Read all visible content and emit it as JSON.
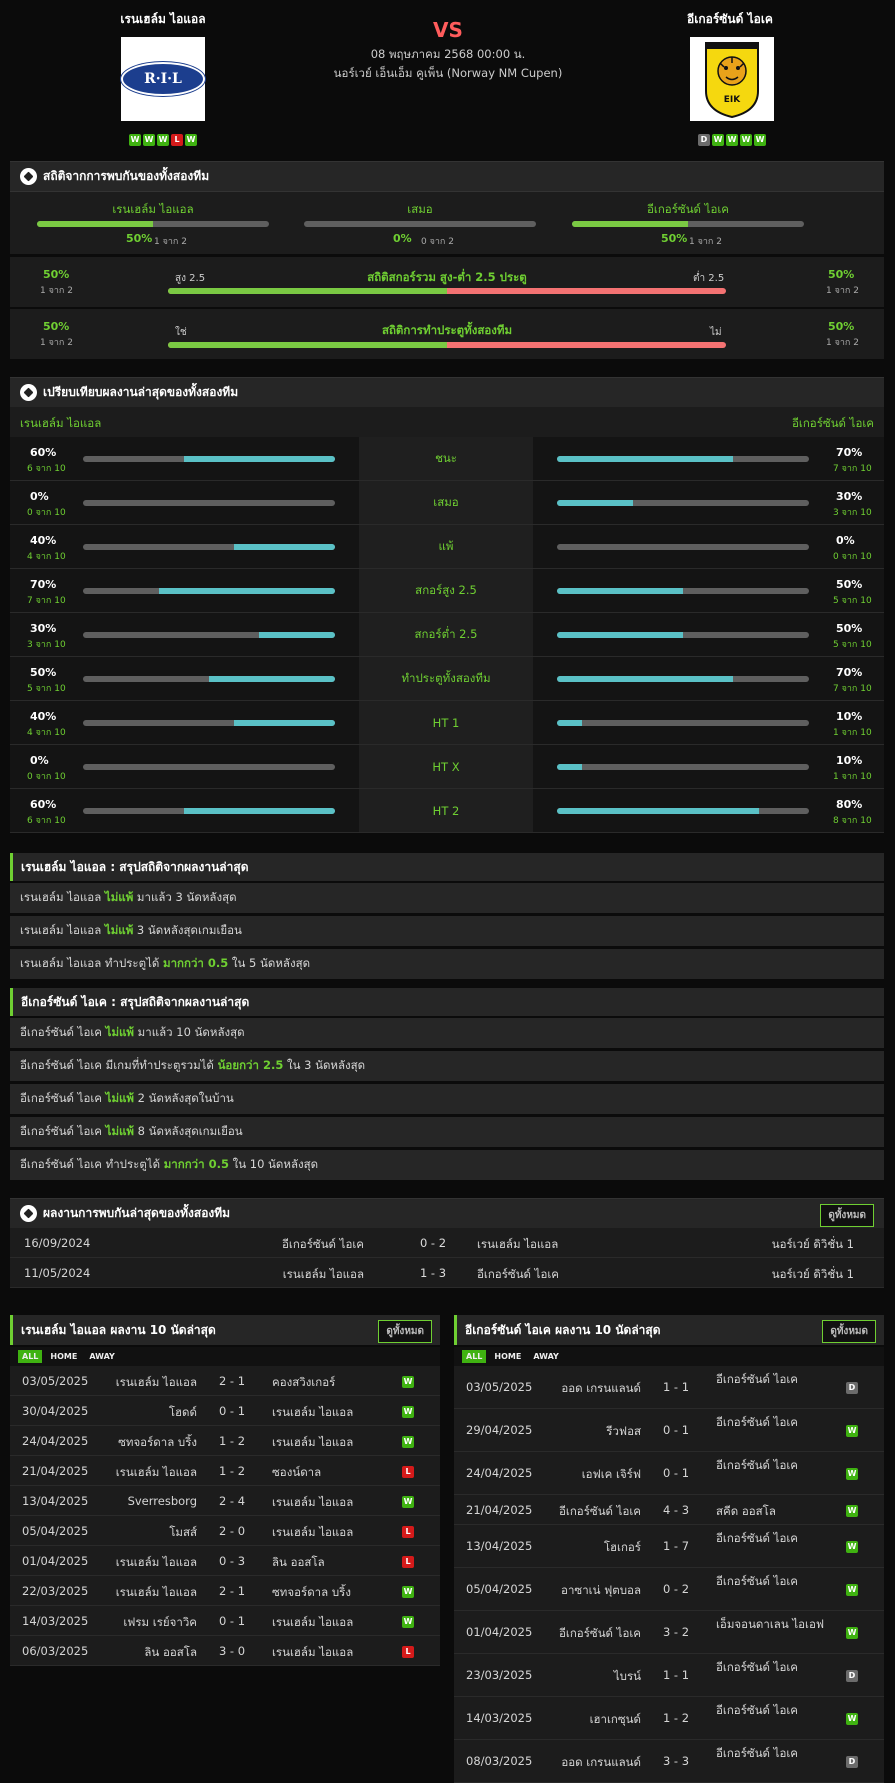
{
  "header": {
    "home_name": "เรนเฮล์ม ไอแอล",
    "away_name": "อีเกอร์ซันด์ ไอเค",
    "vs": "VS",
    "datetime": "08 พฤษภาคม 2568 00:00 น.",
    "competition": "นอร์เวย์ เอ็นเอ็ม คูเพ็น (Norway NM Cupen)",
    "home_logo_text": "R·I·L",
    "away_logo_text": "EIK",
    "home_form": [
      "W",
      "W",
      "W",
      "L",
      "W"
    ],
    "away_form": [
      "D",
      "W",
      "W",
      "W",
      "W"
    ]
  },
  "h2h_stats": {
    "title": "สถิติจากการพบกันของทั้งสองทีม",
    "cols": [
      {
        "label": "เรนเฮล์ม ไอแอล",
        "pct": "50%",
        "sub": "1 จาก 2",
        "value": 0.5
      },
      {
        "label": "เสมอ",
        "pct": "0%",
        "sub": "0 จาก 2",
        "value": 0
      },
      {
        "label": "อีเกอร์ซันด์ ไอเค",
        "pct": "50%",
        "sub": "1 จาก 2",
        "value": 0.5
      }
    ],
    "over_under": {
      "title": "สถิติสกอร์รวม สูง-ต่ำ 2.5 ประตู",
      "left_label": "สูง 2.5",
      "right_label": "ต่ำ 2.5",
      "left_pct": "50%",
      "left_sub": "1 จาก 2",
      "right_pct": "50%",
      "right_sub": "1 จาก 2",
      "value": 0.5
    },
    "btts": {
      "title": "สถิติการทำประตูทั้งสองทีม",
      "left_label": "ใช่",
      "right_label": "ไม่",
      "left_pct": "50%",
      "left_sub": "1 จาก 2",
      "right_pct": "50%",
      "right_sub": "1 จาก 2",
      "value": 0.5
    }
  },
  "compare": {
    "title": "เปรียบเทียบผลงานล่าสุดของทั้งสองทีม",
    "home": "เรนเฮล์ม ไอแอล",
    "away": "อีเกอร์ซันด์ ไอเค",
    "rows": [
      {
        "label": "ชนะ",
        "l_pct": "60%",
        "l_sub": "6 จาก 10",
        "l_val": 0.6,
        "r_pct": "70%",
        "r_sub": "7 จาก 10",
        "r_val": 0.7
      },
      {
        "label": "เสมอ",
        "l_pct": "0%",
        "l_sub": "0 จาก 10",
        "l_val": 0,
        "r_pct": "30%",
        "r_sub": "3 จาก 10",
        "r_val": 0.3
      },
      {
        "label": "แพ้",
        "l_pct": "40%",
        "l_sub": "4 จาก 10",
        "l_val": 0.4,
        "r_pct": "0%",
        "r_sub": "0 จาก 10",
        "r_val": 0
      },
      {
        "label": "สกอร์สูง 2.5",
        "l_pct": "70%",
        "l_sub": "7 จาก 10",
        "l_val": 0.7,
        "r_pct": "50%",
        "r_sub": "5 จาก 10",
        "r_val": 0.5
      },
      {
        "label": "สกอร์ต่ำ 2.5",
        "l_pct": "30%",
        "l_sub": "3 จาก 10",
        "l_val": 0.3,
        "r_pct": "50%",
        "r_sub": "5 จาก 10",
        "r_val": 0.5
      },
      {
        "label": "ทำประตูทั้งสองทีม",
        "l_pct": "50%",
        "l_sub": "5 จาก 10",
        "l_val": 0.5,
        "r_pct": "70%",
        "r_sub": "7 จาก 10",
        "r_val": 0.7
      },
      {
        "label": "HT 1",
        "l_pct": "40%",
        "l_sub": "4 จาก 10",
        "l_val": 0.4,
        "r_pct": "10%",
        "r_sub": "1 จาก 10",
        "r_val": 0.1
      },
      {
        "label": "HT X",
        "l_pct": "0%",
        "l_sub": "0 จาก 10",
        "l_val": 0,
        "r_pct": "10%",
        "r_sub": "1 จาก 10",
        "r_val": 0.1
      },
      {
        "label": "HT 2",
        "l_pct": "60%",
        "l_sub": "6 จาก 10",
        "l_val": 0.6,
        "r_pct": "80%",
        "r_sub": "8 จาก 10",
        "r_val": 0.8
      }
    ]
  },
  "home_summary": {
    "title": "เรนเฮล์ม ไอแอล : สรุปสถิติจากผลงานล่าสุด",
    "rows": [
      {
        "pre": "เรนเฮล์ม ไอแอล ",
        "hl": "ไม่แพ้",
        "post": " มาแล้ว 3 นัดหลังสุด"
      },
      {
        "pre": "เรนเฮล์ม ไอแอล ",
        "hl": "ไม่แพ้",
        "post": " 3 นัดหลังสุดเกมเยือน"
      },
      {
        "pre": "เรนเฮล์ม ไอแอล ทำประตูได้ ",
        "hl": "มากกว่า 0.5",
        "post": " ใน 5 นัดหลังสุด"
      }
    ]
  },
  "away_summary": {
    "title": "อีเกอร์ซันด์ ไอเค : สรุปสถิติจากผลงานล่าสุด",
    "rows": [
      {
        "pre": "อีเกอร์ซันด์ ไอเค ",
        "hl": "ไม่แพ้",
        "post": " มาแล้ว 10 นัดหลังสุด"
      },
      {
        "pre": "อีเกอร์ซันด์ ไอเค มีเกมที่ทำประตูรวมได้ ",
        "hl": "น้อยกว่า 2.5",
        "post": " ใน 3 นัดหลังสุด"
      },
      {
        "pre": "อีเกอร์ซันด์ ไอเค ",
        "hl": "ไม่แพ้",
        "post": " 2 นัดหลังสุดในบ้าน"
      },
      {
        "pre": "อีเกอร์ซันด์ ไอเค ",
        "hl": "ไม่แพ้",
        "post": " 8 นัดหลังสุดเกมเยือน"
      },
      {
        "pre": "อีเกอร์ซันด์ ไอเค ทำประตูได้ ",
        "hl": "มากกว่า 0.5",
        "post": " ใน 10 นัดหลังสุด"
      }
    ]
  },
  "h2h_results": {
    "title": "ผลงานการพบกันล่าสุดของทั้งสองทีม",
    "view_all": "ดูทั้งหมด",
    "rows": [
      {
        "date": "16/09/2024",
        "home": "อีเกอร์ซันด์ ไอเค",
        "score": "0 - 2",
        "away": "เรนเฮล์ม ไอแอล",
        "league": "นอร์เวย์ ดิวิชั่น 1"
      },
      {
        "date": "11/05/2024",
        "home": "เรนเฮล์ม ไอแอล",
        "score": "1 - 3",
        "away": "อีเกอร์ซันด์ ไอเค",
        "league": "นอร์เวย์ ดิวิชั่น 1"
      }
    ]
  },
  "tabs": {
    "all": "ALL",
    "home": "HOME",
    "away": "AWAY"
  },
  "home_last10": {
    "title": "เรนเฮล์ม ไอแอล ผลงาน 10 นัดล่าสุด",
    "view_all": "ดูทั้งหมด",
    "rows": [
      {
        "date": "03/05/2025",
        "home": "เรนเฮล์ม ไอแอล",
        "score": "2 - 1",
        "away": "คองสวิงเกอร์",
        "res": "W"
      },
      {
        "date": "30/04/2025",
        "home": "โฮดด์",
        "score": "0 - 1",
        "away": "เรนเฮล์ม ไอแอล",
        "res": "W"
      },
      {
        "date": "24/04/2025",
        "home": "ซทจอร์ดาล บริ้ง",
        "score": "1 - 2",
        "away": "เรนเฮล์ม ไอแอล",
        "res": "W"
      },
      {
        "date": "21/04/2025",
        "home": "เรนเฮล์ม ไอแอล",
        "score": "1 - 2",
        "away": "ซองน์ดาล",
        "res": "L"
      },
      {
        "date": "13/04/2025",
        "home": "Sverresborg",
        "score": "2 - 4",
        "away": "เรนเฮล์ม ไอแอล",
        "res": "W"
      },
      {
        "date": "05/04/2025",
        "home": "โมสส์",
        "score": "2 - 0",
        "away": "เรนเฮล์ม ไอแอล",
        "res": "L"
      },
      {
        "date": "01/04/2025",
        "home": "เรนเฮล์ม ไอแอล",
        "score": "0 - 3",
        "away": "ลิน ออสโล",
        "res": "L"
      },
      {
        "date": "22/03/2025",
        "home": "เรนเฮล์ม ไอแอล",
        "score": "2 - 1",
        "away": "ซทจอร์ดาล บริ้ง",
        "res": "W"
      },
      {
        "date": "14/03/2025",
        "home": "เฟรม เรย์จาวิค",
        "score": "0 - 1",
        "away": "เรนเฮล์ม ไอแอล",
        "res": "W"
      },
      {
        "date": "06/03/2025",
        "home": "ลิน ออสโล",
        "score": "3 - 0",
        "away": "เรนเฮล์ม ไอแอล",
        "res": "L"
      }
    ]
  },
  "away_last10": {
    "title": "อีเกอร์ซันด์ ไอเค ผลงาน 10 นัดล่าสุด",
    "view_all": "ดูทั้งหมด",
    "rows": [
      {
        "date": "03/05/2025",
        "home": "ออด เกรนแลนด์",
        "score": "1 - 1",
        "away": "อีเกอร์ซันด์ ไอเค",
        "res": "D"
      },
      {
        "date": "29/04/2025",
        "home": "รีวฟอส",
        "score": "0 - 1",
        "away": "อีเกอร์ซันด์ ไอเค",
        "res": "W"
      },
      {
        "date": "24/04/2025",
        "home": "เอฟเค เจิร์ฟ",
        "score": "0 - 1",
        "away": "อีเกอร์ซันด์ ไอเค",
        "res": "W"
      },
      {
        "date": "21/04/2025",
        "home": "อีเกอร์ซันด์ ไอเค",
        "score": "4 - 3",
        "away": "สคีด ออสโล",
        "res": "W"
      },
      {
        "date": "13/04/2025",
        "home": "โฮเกอร์",
        "score": "1 - 7",
        "away": "อีเกอร์ซันด์ ไอเค",
        "res": "W"
      },
      {
        "date": "05/04/2025",
        "home": "อาซาเน่ ฟุตบอล",
        "score": "0 - 2",
        "away": "อีเกอร์ซันด์ ไอเค",
        "res": "W"
      },
      {
        "date": "01/04/2025",
        "home": "อีเกอร์ซันด์ ไอเค",
        "score": "3 - 2",
        "away": "เอ็มจอนดาเลน ไอเอฟ",
        "res": "W"
      },
      {
        "date": "23/03/2025",
        "home": "ไบรน์",
        "score": "1 - 1",
        "away": "อีเกอร์ซันด์ ไอเค",
        "res": "D"
      },
      {
        "date": "14/03/2025",
        "home": "เฮาเกซุนด์",
        "score": "1 - 2",
        "away": "อีเกอร์ซันด์ ไอเค",
        "res": "W"
      },
      {
        "date": "08/03/2025",
        "home": "ออด เกรนแลนด์",
        "score": "3 - 3",
        "away": "อีเกอร์ซันด์ ไอเค",
        "res": "D"
      }
    ]
  }
}
